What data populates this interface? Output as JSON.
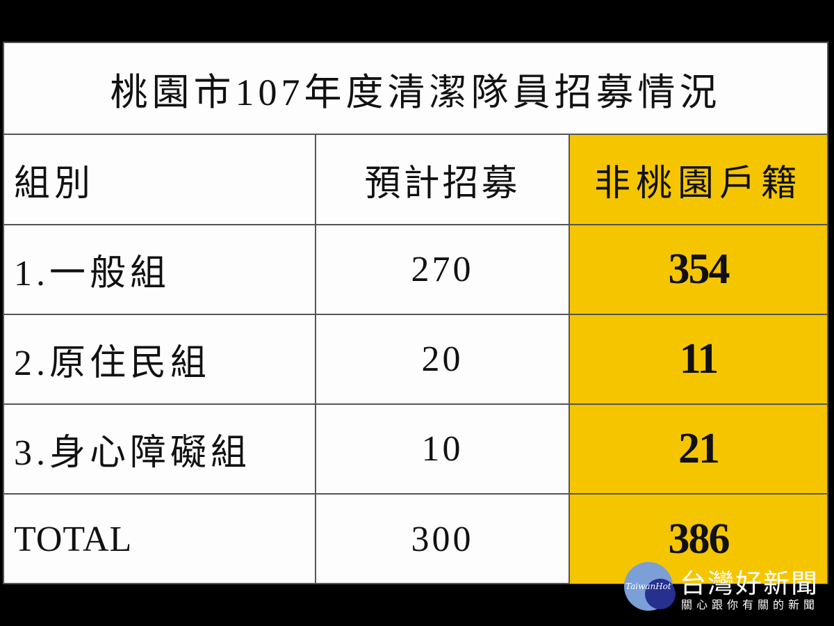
{
  "title": "桃園市107年度清潔隊員招募情況",
  "headers": [
    "組別",
    "預計招募",
    "非桃園戶籍"
  ],
  "rows": [
    [
      "1.一般組",
      "270",
      "354"
    ],
    [
      "2.原住民組",
      "20",
      "11"
    ],
    [
      "3.身心障礙組",
      "10",
      "21"
    ],
    [
      "TOTAL",
      "300",
      "386"
    ]
  ],
  "highlight_color": "#f5c500",
  "logo": {
    "name_en": "TaiwanHot",
    "name_zh": "台灣好新聞",
    "slogan": "關心跟你有關的新聞"
  }
}
